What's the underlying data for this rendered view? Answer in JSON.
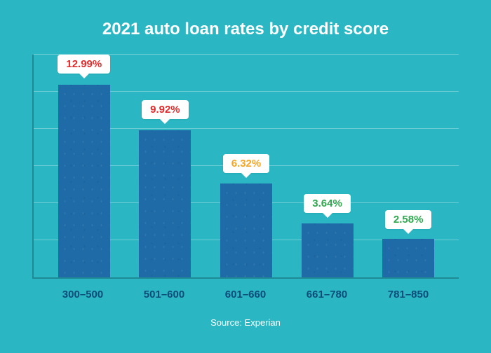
{
  "chart": {
    "type": "bar",
    "title": "2021 auto loan rates by credit score",
    "title_color": "#ffffff",
    "title_fontsize": 24,
    "background_color": "#2ab7c3",
    "axis_color": "#208a94",
    "grid_color": "#6dcdd5",
    "ylim": [
      0,
      15
    ],
    "grid_steps": 6,
    "bar_color": "#1e6ba8",
    "bar_width_pct": 64,
    "x_label_color": "#0d4b78",
    "x_label_fontsize": 15,
    "tooltip_bg": "#ffffff",
    "source_color": "#ffffff",
    "source": "Source: Experian",
    "bars": [
      {
        "category": "300–500",
        "value": 12.99,
        "display": "12.99%",
        "label_color": "#e22b2b"
      },
      {
        "category": "501–600",
        "value": 9.92,
        "display": "9.92%",
        "label_color": "#e22b2b"
      },
      {
        "category": "601–660",
        "value": 6.32,
        "display": "6.32%",
        "label_color": "#f6a623"
      },
      {
        "category": "661–780",
        "value": 3.64,
        "display": "3.64%",
        "label_color": "#2fa84f"
      },
      {
        "category": "781–850",
        "value": 2.58,
        "display": "2.58%",
        "label_color": "#2fa84f"
      }
    ]
  }
}
